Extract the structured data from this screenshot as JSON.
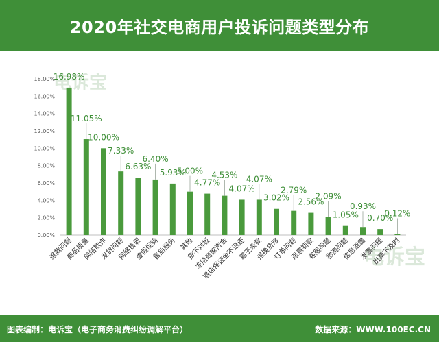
{
  "header": {
    "title": "2020年社交电商用户投诉问题类型分布"
  },
  "footer": {
    "left": "图表编制：电诉宝（电子商务消费纠纷调解平台）",
    "right": "数据来源：WWW.100EC.CN"
  },
  "watermark": {
    "text": "电诉宝"
  },
  "colors": {
    "header_bg": "#3f8f38",
    "bar": "#4a9a3c",
    "label": "#3f8f38"
  },
  "chart_data": {
    "type": "bar",
    "title": "2020年社交电商用户投诉问题类型分布",
    "categories": [
      "退款问题",
      "商品质量",
      "网络欺诈",
      "发货问题",
      "网络售假",
      "虚假促销",
      "售后服务",
      "其他",
      "货不对板",
      "冻结商家资金",
      "退店保证金不退还",
      "霸王条款",
      "退换货难",
      "订单问题",
      "恶意罚款",
      "客服问题",
      "物流问题",
      "信息泄露",
      "发票问题",
      "出票不及时"
    ],
    "values": [
      16.98,
      11.05,
      10.0,
      7.33,
      6.63,
      6.4,
      5.93,
      5.0,
      4.77,
      4.53,
      4.07,
      4.07,
      3.02,
      2.79,
      2.56,
      2.09,
      1.05,
      0.93,
      0.7,
      0.12
    ],
    "value_labels": [
      "16.98%",
      "11.05%",
      "10.00%",
      "7.33%",
      "6.63%",
      "6.40%",
      "5.93%",
      "5.00%",
      "4.77%",
      "4.53%",
      "4.07%",
      "4.07%",
      "3.02%",
      "2.79%",
      "2.56%",
      "2.09%",
      "1.05%",
      "0.93%",
      "0.70%",
      "0.12%"
    ],
    "yticks": [
      "0.00%",
      "2.00%",
      "4.00%",
      "6.00%",
      "8.00%",
      "10.00%",
      "12.00%",
      "14.00%",
      "16.00%",
      "18.00%"
    ],
    "ylim": [
      0,
      18
    ],
    "grid": false,
    "legend": "none"
  }
}
